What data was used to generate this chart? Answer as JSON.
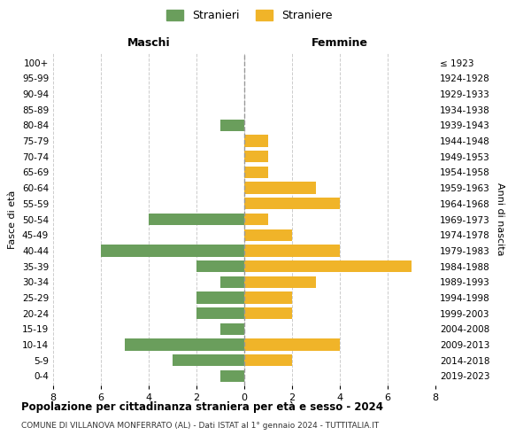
{
  "age_groups": [
    "0-4",
    "5-9",
    "10-14",
    "15-19",
    "20-24",
    "25-29",
    "30-34",
    "35-39",
    "40-44",
    "45-49",
    "50-54",
    "55-59",
    "60-64",
    "65-69",
    "70-74",
    "75-79",
    "80-84",
    "85-89",
    "90-94",
    "95-99",
    "100+"
  ],
  "birth_years": [
    "2019-2023",
    "2014-2018",
    "2009-2013",
    "2004-2008",
    "1999-2003",
    "1994-1998",
    "1989-1993",
    "1984-1988",
    "1979-1983",
    "1974-1978",
    "1969-1973",
    "1964-1968",
    "1959-1963",
    "1954-1958",
    "1949-1953",
    "1944-1948",
    "1939-1943",
    "1934-1938",
    "1929-1933",
    "1924-1928",
    "≤ 1923"
  ],
  "maschi": [
    1,
    3,
    5,
    1,
    2,
    2,
    1,
    2,
    6,
    0,
    4,
    0,
    0,
    0,
    0,
    0,
    1,
    0,
    0,
    0,
    0
  ],
  "femmine": [
    0,
    2,
    4,
    0,
    2,
    2,
    3,
    7,
    4,
    2,
    1,
    4,
    3,
    1,
    1,
    1,
    0,
    0,
    0,
    0,
    0
  ],
  "maschi_color": "#6a9e5c",
  "femmine_color": "#f0b429",
  "background_color": "#ffffff",
  "grid_color": "#cccccc",
  "title": "Popolazione per cittadinanza straniera per età e sesso - 2024",
  "subtitle": "COMUNE DI VILLANOVA MONFERRATO (AL) - Dati ISTAT al 1° gennaio 2024 - TUTTITALIA.IT",
  "xlabel_left": "Maschi",
  "xlabel_right": "Femmine",
  "ylabel_left": "Fasce di età",
  "ylabel_right": "Anni di nascita",
  "legend_maschi": "Stranieri",
  "legend_femmine": "Straniere",
  "xlim": 8
}
